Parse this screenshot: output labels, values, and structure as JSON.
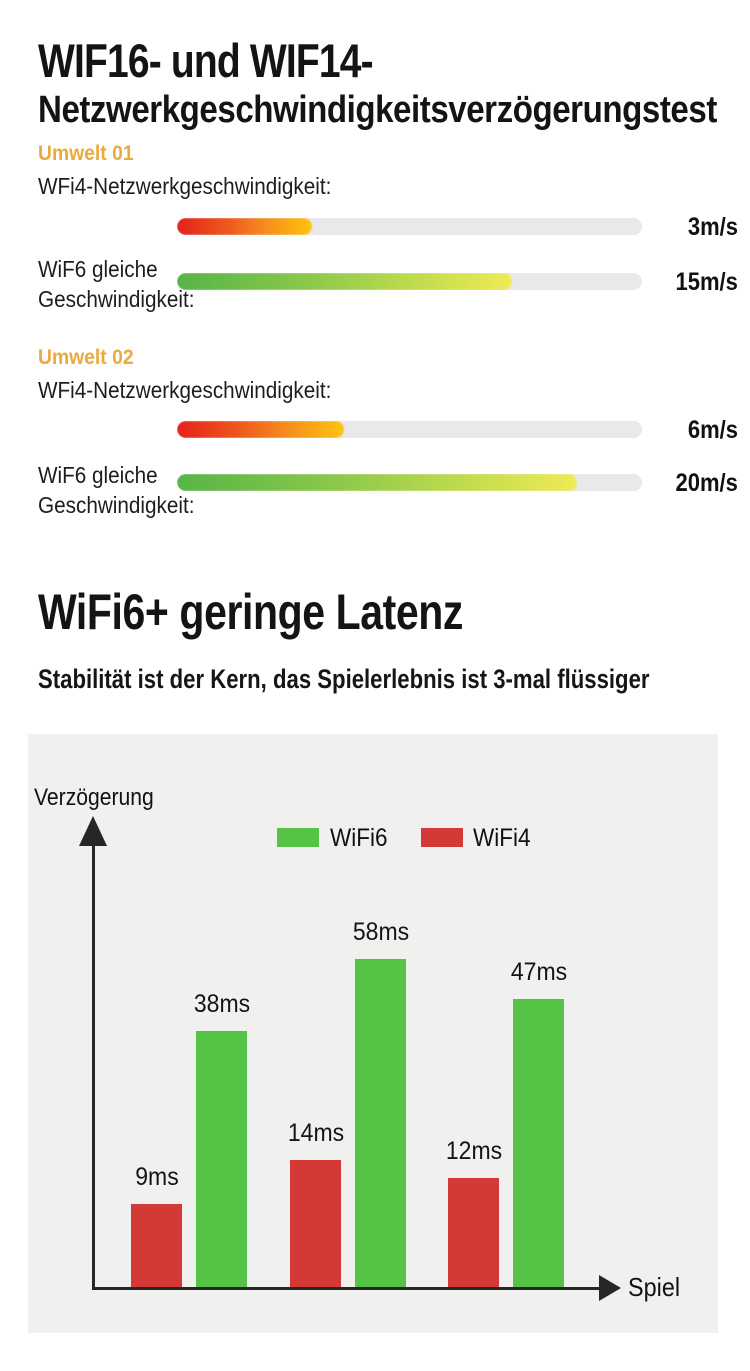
{
  "speed_test": {
    "title_line1": "WIF16- und WIF14-",
    "title_line2": "Netzwerkgeschwindigkeitsverzögerungstest",
    "environments": [
      {
        "heading": "Umwelt 01",
        "rows": [
          {
            "label": "WFi4-Netzwerkgeschwindigkeit:",
            "value": "3m/s",
            "fill_pct": 29,
            "bar_type": "wifi4"
          },
          {
            "label": "WiF6 gleiche",
            "label2": "Geschwindigkeit:",
            "value": "15m/s",
            "fill_pct": 72,
            "bar_type": "wifi6"
          }
        ]
      },
      {
        "heading": "Umwelt 02",
        "rows": [
          {
            "label": "WFi4-Netzwerkgeschwindigkeit:",
            "value": "6m/s",
            "fill_pct": 36,
            "bar_type": "wifi4"
          },
          {
            "label": "WiF6 gleiche",
            "label2": "Geschwindigkeit:",
            "value": "20m/s",
            "fill_pct": 86,
            "bar_type": "wifi6"
          }
        ]
      }
    ]
  },
  "latency_section": {
    "title": "WiFi6+ geringe Latenz",
    "subtitle": "Stabilität ist der Kern, das Spielerlebnis ist 3-mal flüssiger"
  },
  "chart_data": {
    "type": "bar",
    "title": "",
    "ylabel": "Verzögerung",
    "xlabel": "Spiel",
    "unit": "ms",
    "groups": 3,
    "grid": false,
    "legend_position": "top",
    "legend": [
      "WiFi6",
      "WiFi4"
    ],
    "series": [
      {
        "name": "WiFi6",
        "color": "#55c345",
        "values": [
          38,
          58,
          47
        ],
        "labels": [
          "38ms",
          "58ms",
          "47ms"
        ]
      },
      {
        "name": "WiFi4",
        "color": "#d23937",
        "values": [
          9,
          14,
          12
        ],
        "labels": [
          "9ms",
          "14ms",
          "12ms"
        ]
      }
    ]
  },
  "colors": {
    "accent_gold": "#ebaa3f",
    "wifi4_gradient": [
      "#e5211b",
      "#f68b1f",
      "#fdc40d"
    ],
    "wifi6_gradient": [
      "#56b447",
      "#c6dd4e",
      "#efea55"
    ],
    "chart_green": "#55c345",
    "chart_red": "#d23937",
    "panel_bg": "#f0f0ef",
    "track_bg": "#e9e9ec"
  }
}
